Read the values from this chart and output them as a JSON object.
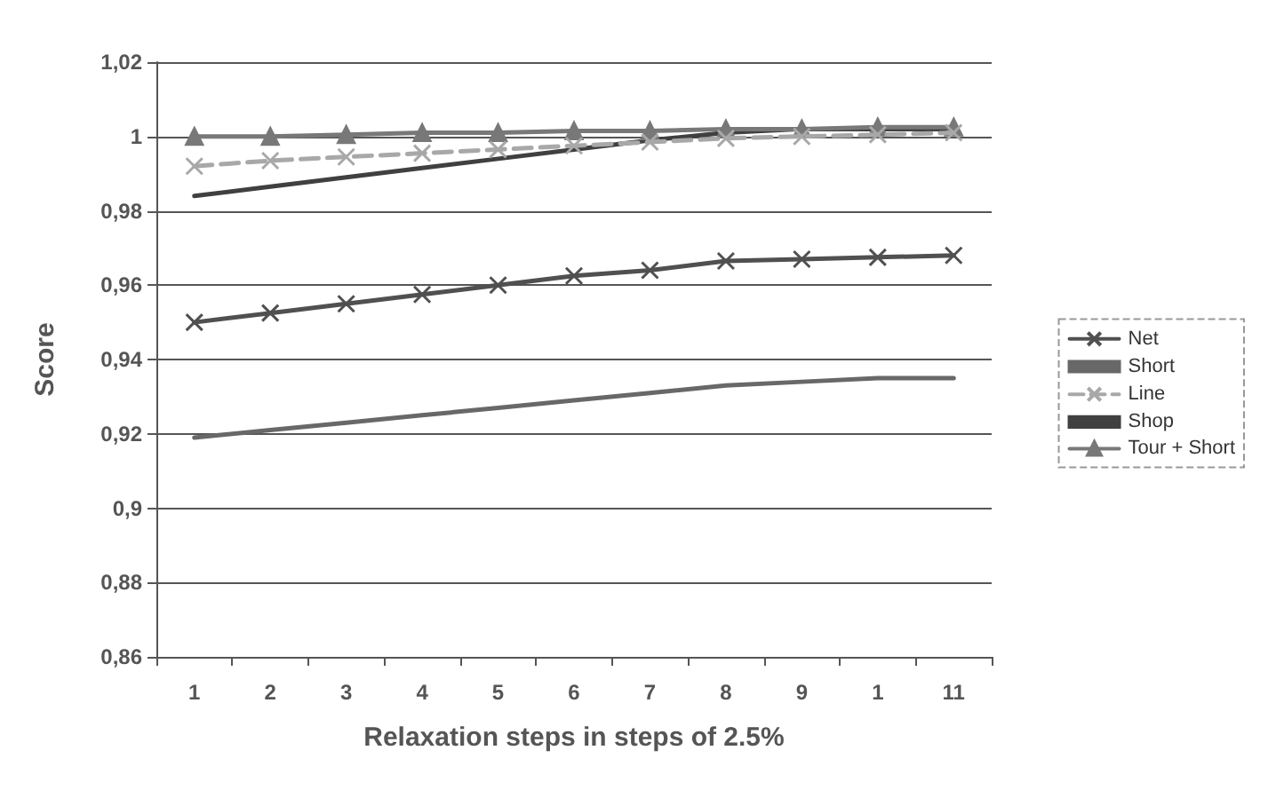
{
  "chart_data": {
    "type": "line",
    "xlabel": "Relaxation steps in steps of 2.5%",
    "ylabel": "Score",
    "categories": [
      "1",
      "2",
      "3",
      "4",
      "5",
      "6",
      "7",
      "8",
      "9",
      "1",
      "11"
    ],
    "series": [
      {
        "name": "Net",
        "color": "#505050",
        "marker": "cross",
        "values": [
          0.95,
          0.9525,
          0.955,
          0.9575,
          0.96,
          0.9625,
          0.964,
          0.9665,
          0.967,
          0.9675,
          0.968
        ]
      },
      {
        "name": "Short",
        "color": "#686868",
        "marker": "none",
        "values": [
          0.919,
          0.921,
          0.923,
          0.925,
          0.927,
          0.929,
          0.931,
          0.933,
          0.934,
          0.935,
          0.935
        ]
      },
      {
        "name": "Line",
        "color": "#a8a8a8",
        "marker": "cross",
        "line_style": "dashed",
        "values": [
          0.992,
          0.9935,
          0.9945,
          0.9955,
          0.9965,
          0.9975,
          0.9985,
          0.9995,
          1.0,
          1.0005,
          1.001
        ]
      },
      {
        "name": "Shop",
        "color": "#404040",
        "marker": "none",
        "values": [
          0.984,
          0.9865,
          0.989,
          0.9915,
          0.994,
          0.9965,
          0.999,
          1.001,
          1.002,
          1.002,
          1.002
        ]
      },
      {
        "name": "Tour + Short",
        "color": "#787878",
        "marker": "triangle",
        "values": [
          1.0,
          1.0,
          1.0005,
          1.001,
          1.001,
          1.0015,
          1.0015,
          1.002,
          1.002,
          1.0025,
          1.0025
        ]
      }
    ],
    "ylim": [
      0.86,
      1.02
    ],
    "yticks": [
      {
        "value": 0.86,
        "label": "0,86"
      },
      {
        "value": 0.88,
        "label": "0,88"
      },
      {
        "value": 0.9,
        "label": "0,9"
      },
      {
        "value": 0.92,
        "label": "0,92"
      },
      {
        "value": 0.94,
        "label": "0,94"
      },
      {
        "value": 0.96,
        "label": "0,96"
      },
      {
        "value": 0.98,
        "label": "0,98"
      },
      1,
      {
        "value": 1.02,
        "label": "1,02"
      }
    ],
    "grid": "y",
    "legend": "right"
  }
}
